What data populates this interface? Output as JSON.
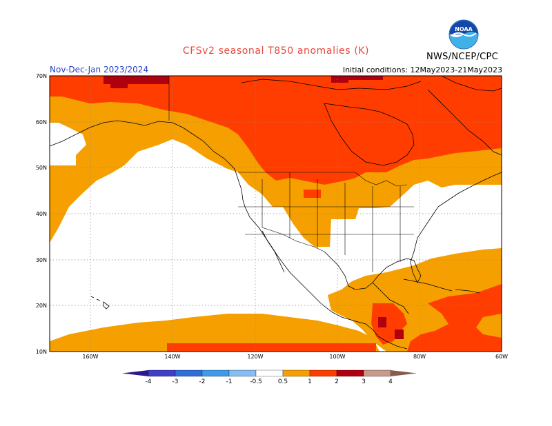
{
  "title": "CFSv2 seasonal T850 anomalies (K)",
  "period_label": "Nov-Dec-Jan 2023/2024",
  "initial_conditions": "Initial conditions: 12May2023-21May2023",
  "org_label": "NWS/NCEP/CPC",
  "logo_text": "NOAA",
  "lat_ticks": [
    "70N",
    "60N",
    "50N",
    "40N",
    "30N",
    "20N",
    "10N"
  ],
  "lon_ticks": [
    "160W",
    "140W",
    "120W",
    "100W",
    "80W",
    "60W"
  ],
  "colorbar": {
    "labels": [
      "-4",
      "-3",
      "-2",
      "-1",
      "-0.5",
      "0.5",
      "1",
      "2",
      "3",
      "4"
    ],
    "colors": [
      "#2b1a8c",
      "#3f3fc9",
      "#2f6fd9",
      "#3f9bea",
      "#86bdf3",
      "#ffffff",
      "#f5a000",
      "#ff3d00",
      "#b00010",
      "#c89a8c",
      "#8a5a4a"
    ]
  },
  "legend_colors": {
    "anom_0_5_1": "#f5a000",
    "anom_1_2": "#ff3d00",
    "anom_2_3": "#b00010"
  }
}
